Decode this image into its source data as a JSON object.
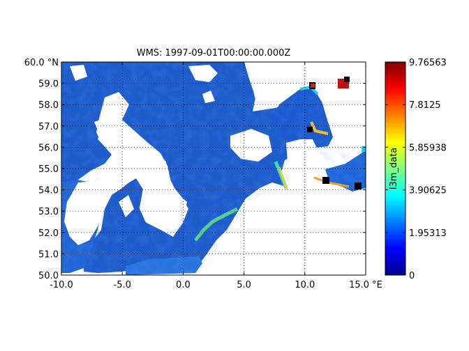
{
  "chart_data": {
    "type": "heatmap",
    "title": "WMS: 1997-09-01T00:00:00.000Z",
    "x_unit": "°E",
    "y_unit": "°N",
    "xlim": [
      -10.0,
      15.0
    ],
    "ylim": [
      50.0,
      60.0
    ],
    "x_ticks": [
      -10.0,
      -5.0,
      0.0,
      5.0,
      10.0,
      15.0
    ],
    "x_tick_labels": [
      "-10.0",
      "-5.0",
      "0.0",
      "5.0",
      "10.0",
      "15.0 °E"
    ],
    "y_ticks": [
      50.0,
      51.0,
      52.0,
      53.0,
      54.0,
      55.0,
      56.0,
      57.0,
      58.0,
      59.0,
      60.0
    ],
    "y_tick_labels": [
      "50.0",
      "51.0",
      "52.0",
      "53.0",
      "54.0",
      "55.0",
      "56.0",
      "57.0",
      "58.0",
      "59.0",
      "60.0 °N"
    ],
    "grid": true,
    "colorbar": {
      "label": "l3m_data",
      "range": [
        0,
        9.76563
      ],
      "ticks": [
        0,
        1.95313,
        3.90625,
        5.85938,
        7.8125,
        9.76563
      ],
      "tick_labels": [
        "0",
        "1.95313",
        "3.90625",
        "5.85938",
        "7.8125",
        "9.76563"
      ],
      "colormap": "jet"
    },
    "colors": {
      "water_typical": "#1f5fd0",
      "land_or_nodata": "#ffffff",
      "cloud_edge": "#000000"
    }
  }
}
